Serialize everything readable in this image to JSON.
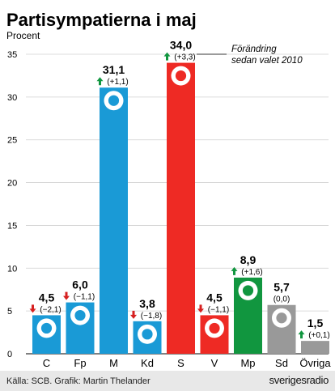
{
  "chart_data": {
    "type": "bar",
    "title": "Partisympatierna i maj",
    "ylabel": "Procent",
    "ylim": [
      0,
      35
    ],
    "yticks": [
      0,
      5,
      10,
      15,
      20,
      25,
      30,
      35
    ],
    "grid": true,
    "categories": [
      "C",
      "Fp",
      "M",
      "Kd",
      "S",
      "V",
      "Mp",
      "Sd",
      "Övriga"
    ],
    "values": [
      4.5,
      6.0,
      31.1,
      3.8,
      34.0,
      4.5,
      8.9,
      5.7,
      1.5
    ],
    "value_labels": [
      "4,5",
      "6,0",
      "31,1",
      "3,8",
      "34,0",
      "4,5",
      "8,9",
      "5,7",
      "1,5"
    ],
    "change_labels": [
      "(−2,1)",
      "(−1,1)",
      "(+1,1)",
      "(−1,8)",
      "(+3,3)",
      "(−1,1)",
      "(+1,6)",
      "(0,0)",
      "(+0,1)"
    ],
    "change_direction": [
      "down",
      "down",
      "up",
      "down",
      "up",
      "down",
      "up",
      "none",
      "up"
    ],
    "colors": [
      "#1a9ad6",
      "#1a9ad6",
      "#1a9ad6",
      "#1a9ad6",
      "#ee2a24",
      "#ee2a24",
      "#11963f",
      "#999999",
      "#999999"
    ],
    "annotation": {
      "lines": [
        "Förändring",
        "sedan valet 2010"
      ]
    },
    "source": "Källa: SCB. Grafik: Martin Thelander",
    "brand": "sverigesradio",
    "arrow_colors": {
      "up": "#11963f",
      "down": "#d62020"
    }
  }
}
